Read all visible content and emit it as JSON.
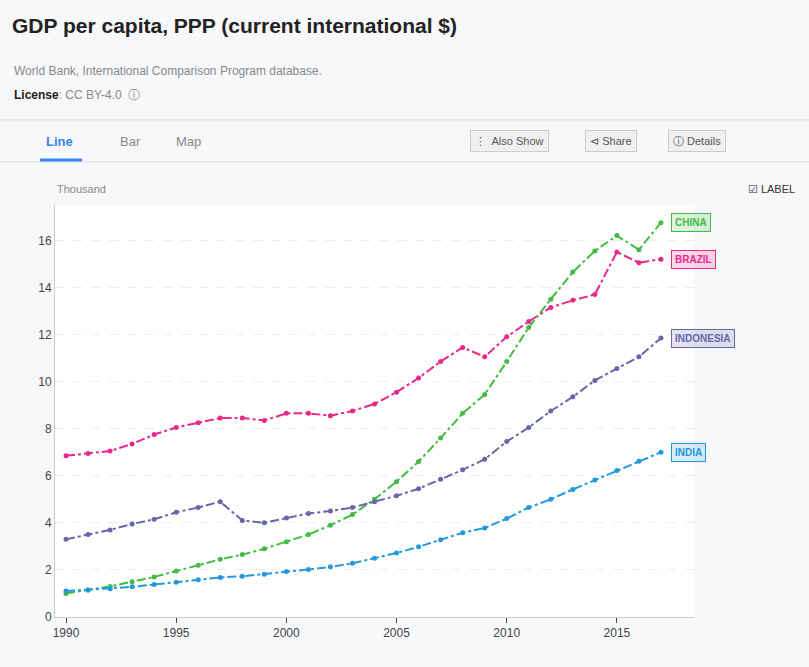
{
  "chart_data": {
    "type": "line",
    "title": "GDP per capita, PPP (current international $)",
    "subtitle": "World Bank, International Comparison Program database.",
    "ylabel": "Thousand",
    "annotations": [
      "License",
      ": CC BY-4.0  ⓘ",
      "Line",
      "Bar",
      "Map",
      "⋮  Also Show",
      "⊲ Share",
      "ⓘ Details",
      "☑ LABEL"
    ],
    "x": [
      1990,
      1991,
      1992,
      1993,
      1994,
      1995,
      1996,
      1997,
      1998,
      1999,
      2000,
      2001,
      2002,
      2003,
      2004,
      2005,
      2006,
      2007,
      2008,
      2009,
      2010,
      2011,
      2012,
      2013,
      2014,
      2015,
      2016,
      2017
    ],
    "series": [
      {
        "name": "BRAZIL",
        "color": "#e8298a",
        "values": [
          6.85,
          6.95,
          7.05,
          7.35,
          7.75,
          8.05,
          8.25,
          8.45,
          8.45,
          8.35,
          8.65,
          8.65,
          8.55,
          8.75,
          9.05,
          9.55,
          10.15,
          10.85,
          11.45,
          11.05,
          11.9,
          12.55,
          13.15,
          13.45,
          13.7,
          15.5,
          15.05,
          15.2
        ]
      },
      {
        "name": "CHINA",
        "color": "#44bb44",
        "values": [
          1.0,
          1.15,
          1.3,
          1.5,
          1.7,
          1.95,
          2.2,
          2.45,
          2.65,
          2.9,
          3.2,
          3.5,
          3.9,
          4.35,
          5.0,
          5.75,
          6.6,
          7.6,
          8.65,
          9.45,
          10.85,
          12.3,
          13.5,
          14.65,
          15.55,
          16.2,
          15.6,
          16.75
        ]
      },
      {
        "name": "INDIA",
        "color": "#2299dd",
        "values": [
          1.1,
          1.15,
          1.2,
          1.28,
          1.38,
          1.48,
          1.58,
          1.68,
          1.73,
          1.82,
          1.93,
          2.02,
          2.13,
          2.28,
          2.5,
          2.72,
          2.98,
          3.28,
          3.58,
          3.78,
          4.18,
          4.65,
          5.0,
          5.42,
          5.82,
          6.22,
          6.62,
          7.0
        ]
      },
      {
        "name": "INDONESIA",
        "color": "#6666aa",
        "values": [
          3.3,
          3.5,
          3.7,
          3.95,
          4.15,
          4.45,
          4.65,
          4.9,
          4.1,
          4.0,
          4.2,
          4.4,
          4.5,
          4.65,
          4.9,
          5.15,
          5.45,
          5.85,
          6.25,
          6.7,
          7.45,
          8.05,
          8.75,
          9.35,
          10.05,
          10.55,
          11.05,
          11.85
        ]
      }
    ],
    "xlim": [
      1989.5,
      2018.5
    ],
    "xticks": [
      1990,
      1995,
      2000,
      2005,
      2010,
      2015
    ],
    "ylim": [
      0,
      17.5
    ],
    "yticks": [
      0,
      2,
      4,
      6,
      8,
      10,
      12,
      14,
      16
    ],
    "grid": true,
    "line_style": "dashdot",
    "marker": "circle"
  }
}
